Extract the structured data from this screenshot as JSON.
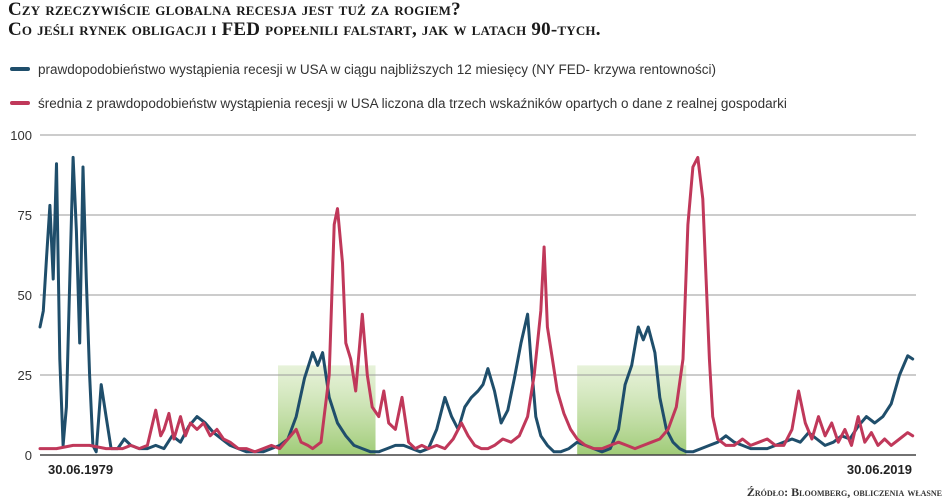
{
  "title": {
    "line1": "Czy rzeczywiście globalna recesja jest tuż za rogiem?",
    "line2": "Co jeśli rynek obligacji i FED popełnili falstart, jak w latach 90-tych."
  },
  "legend": [
    {
      "label": "prawdopodobieństwo wystąpienia recesji w USA w ciągu najbliższych 12 miesięcy (NY FED- krzywa rentowności)",
      "color": "#1f4e6b"
    },
    {
      "label": "średnia z prawdopodobieństw wystąpienia recesji w USA liczona dla trzech wskaźników opartych o dane z realnej gospodarki",
      "color": "#c0385a"
    }
  ],
  "source": "Źródło: Bloomberg, obliczenia własne",
  "chart_data": {
    "type": "line",
    "x_labels": [
      "30.06.1979",
      "30.06.2019"
    ],
    "ylim": [
      0,
      100
    ],
    "yticks": [
      0,
      25,
      50,
      75,
      100
    ],
    "grid": true,
    "highlights": [
      {
        "from": 1993.9,
        "to": 1999.8,
        "color": "#a8cf7c"
      },
      {
        "from": 2012.0,
        "to": 2018.6,
        "color": "#a8cf7c"
      }
    ],
    "series": [
      {
        "name": "prawdopodobieństwo wystąpienia recesji w USA w ciągu najbliższych 12 miesięcy (NY FED- krzywa rentowności)",
        "color": "#1f4e6b",
        "points": [
          [
            1979.5,
            40
          ],
          [
            1979.7,
            45
          ],
          [
            1979.9,
            62
          ],
          [
            1980.1,
            78
          ],
          [
            1980.3,
            55
          ],
          [
            1980.5,
            91
          ],
          [
            1980.7,
            30
          ],
          [
            1980.9,
            3
          ],
          [
            1981.1,
            15
          ],
          [
            1981.3,
            55
          ],
          [
            1981.5,
            93
          ],
          [
            1981.7,
            70
          ],
          [
            1981.9,
            35
          ],
          [
            1982.1,
            90
          ],
          [
            1982.3,
            55
          ],
          [
            1982.5,
            25
          ],
          [
            1982.7,
            3
          ],
          [
            1982.9,
            1
          ],
          [
            1983.2,
            22
          ],
          [
            1983.5,
            12
          ],
          [
            1983.8,
            2
          ],
          [
            1984.2,
            2
          ],
          [
            1984.6,
            5
          ],
          [
            1985.0,
            3
          ],
          [
            1985.5,
            2
          ],
          [
            1986.0,
            2
          ],
          [
            1986.5,
            3
          ],
          [
            1987.0,
            2
          ],
          [
            1987.5,
            6
          ],
          [
            1988.0,
            4
          ],
          [
            1988.5,
            9
          ],
          [
            1989.0,
            12
          ],
          [
            1989.5,
            10
          ],
          [
            1990.0,
            7
          ],
          [
            1990.5,
            5
          ],
          [
            1991.0,
            3
          ],
          [
            1991.5,
            2
          ],
          [
            1992.0,
            1
          ],
          [
            1992.5,
            1
          ],
          [
            1993.0,
            1
          ],
          [
            1993.5,
            2
          ],
          [
            1994.0,
            3
          ],
          [
            1994.5,
            5
          ],
          [
            1995.0,
            12
          ],
          [
            1995.5,
            24
          ],
          [
            1996.0,
            32
          ],
          [
            1996.3,
            28
          ],
          [
            1996.6,
            32
          ],
          [
            1997.0,
            18
          ],
          [
            1997.5,
            10
          ],
          [
            1998.0,
            6
          ],
          [
            1998.5,
            3
          ],
          [
            1999.0,
            2
          ],
          [
            1999.5,
            1
          ],
          [
            2000.0,
            1
          ],
          [
            2000.5,
            2
          ],
          [
            2001.0,
            3
          ],
          [
            2001.5,
            3
          ],
          [
            2002.0,
            2
          ],
          [
            2002.5,
            1
          ],
          [
            2003.0,
            2
          ],
          [
            2003.5,
            8
          ],
          [
            2004.0,
            18
          ],
          [
            2004.4,
            12
          ],
          [
            2004.8,
            8
          ],
          [
            2005.2,
            15
          ],
          [
            2005.6,
            18
          ],
          [
            2006.0,
            20
          ],
          [
            2006.3,
            22
          ],
          [
            2006.6,
            27
          ],
          [
            2007.0,
            20
          ],
          [
            2007.4,
            10
          ],
          [
            2007.8,
            14
          ],
          [
            2008.2,
            24
          ],
          [
            2008.6,
            35
          ],
          [
            2009.0,
            44
          ],
          [
            2009.2,
            30
          ],
          [
            2009.5,
            12
          ],
          [
            2009.8,
            6
          ],
          [
            2010.2,
            3
          ],
          [
            2010.6,
            1
          ],
          [
            2011.0,
            1
          ],
          [
            2011.5,
            2
          ],
          [
            2012.0,
            4
          ],
          [
            2012.5,
            3
          ],
          [
            2013.0,
            2
          ],
          [
            2013.5,
            1
          ],
          [
            2014.0,
            2
          ],
          [
            2014.5,
            8
          ],
          [
            2014.9,
            22
          ],
          [
            2015.3,
            28
          ],
          [
            2015.7,
            40
          ],
          [
            2016.0,
            36
          ],
          [
            2016.3,
            40
          ],
          [
            2016.7,
            32
          ],
          [
            2017.0,
            18
          ],
          [
            2017.4,
            8
          ],
          [
            2017.8,
            4
          ],
          [
            2018.2,
            2
          ],
          [
            2018.6,
            1
          ],
          [
            2019.0,
            1
          ],
          [
            2019.5,
            2
          ],
          [
            2020.0,
            3
          ],
          [
            2020.5,
            4
          ],
          [
            2021.0,
            6
          ],
          [
            2021.5,
            4
          ],
          [
            2022.0,
            3
          ],
          [
            2022.5,
            2
          ],
          [
            2023.0,
            2
          ],
          [
            2023.5,
            2
          ],
          [
            2024.0,
            3
          ],
          [
            2024.5,
            4
          ],
          [
            2025.0,
            5
          ],
          [
            2025.5,
            4
          ],
          [
            2026.0,
            7
          ],
          [
            2026.5,
            5
          ],
          [
            2027.0,
            3
          ],
          [
            2027.5,
            4
          ],
          [
            2028.0,
            6
          ],
          [
            2028.5,
            5
          ],
          [
            2029.0,
            9
          ],
          [
            2029.5,
            12
          ],
          [
            2030.0,
            10
          ],
          [
            2030.5,
            12
          ],
          [
            2031.0,
            16
          ],
          [
            2031.5,
            25
          ],
          [
            2032.0,
            31
          ],
          [
            2032.3,
            30
          ]
        ]
      },
      {
        "name": "średnia z prawdopodobieństw wystąpienia recesji w USA liczona dla trzech wskaźników opartych o dane z realnej gospodarki",
        "color": "#c0385a",
        "points": [
          [
            1979.5,
            2
          ],
          [
            1980.5,
            2
          ],
          [
            1981.5,
            3
          ],
          [
            1982.5,
            3
          ],
          [
            1983.5,
            2
          ],
          [
            1984.5,
            2
          ],
          [
            1985.0,
            3
          ],
          [
            1985.5,
            2
          ],
          [
            1986.0,
            3
          ],
          [
            1986.5,
            14
          ],
          [
            1986.8,
            6
          ],
          [
            1987.0,
            8
          ],
          [
            1987.3,
            13
          ],
          [
            1987.6,
            5
          ],
          [
            1988.0,
            12
          ],
          [
            1988.3,
            6
          ],
          [
            1988.6,
            10
          ],
          [
            1989.0,
            8
          ],
          [
            1989.4,
            10
          ],
          [
            1989.8,
            6
          ],
          [
            1990.2,
            8
          ],
          [
            1990.6,
            5
          ],
          [
            1991.0,
            4
          ],
          [
            1991.5,
            2
          ],
          [
            1992.0,
            2
          ],
          [
            1992.5,
            1
          ],
          [
            1993.0,
            2
          ],
          [
            1993.5,
            3
          ],
          [
            1994.0,
            2
          ],
          [
            1994.5,
            5
          ],
          [
            1995.0,
            8
          ],
          [
            1995.3,
            4
          ],
          [
            1995.7,
            3
          ],
          [
            1996.0,
            2
          ],
          [
            1996.5,
            4
          ],
          [
            1997.0,
            25
          ],
          [
            1997.3,
            72
          ],
          [
            1997.5,
            77
          ],
          [
            1997.8,
            60
          ],
          [
            1998.0,
            35
          ],
          [
            1998.3,
            30
          ],
          [
            1998.6,
            20
          ],
          [
            1999.0,
            44
          ],
          [
            1999.3,
            25
          ],
          [
            1999.6,
            15
          ],
          [
            2000.0,
            12
          ],
          [
            2000.3,
            20
          ],
          [
            2000.6,
            10
          ],
          [
            2001.0,
            8
          ],
          [
            2001.4,
            18
          ],
          [
            2001.8,
            4
          ],
          [
            2002.2,
            2
          ],
          [
            2002.6,
            3
          ],
          [
            2003.0,
            2
          ],
          [
            2003.5,
            3
          ],
          [
            2004.0,
            2
          ],
          [
            2004.5,
            5
          ],
          [
            2005.0,
            10
          ],
          [
            2005.4,
            6
          ],
          [
            2005.8,
            3
          ],
          [
            2006.2,
            2
          ],
          [
            2006.6,
            2
          ],
          [
            2007.0,
            3
          ],
          [
            2007.5,
            5
          ],
          [
            2008.0,
            4
          ],
          [
            2008.5,
            6
          ],
          [
            2009.0,
            12
          ],
          [
            2009.4,
            25
          ],
          [
            2009.8,
            45
          ],
          [
            2010.0,
            65
          ],
          [
            2010.2,
            40
          ],
          [
            2010.5,
            30
          ],
          [
            2010.8,
            20
          ],
          [
            2011.2,
            13
          ],
          [
            2011.6,
            8
          ],
          [
            2012.0,
            5
          ],
          [
            2012.5,
            3
          ],
          [
            2013.0,
            2
          ],
          [
            2013.5,
            2
          ],
          [
            2014.0,
            3
          ],
          [
            2014.5,
            4
          ],
          [
            2015.0,
            3
          ],
          [
            2015.5,
            2
          ],
          [
            2016.0,
            3
          ],
          [
            2016.5,
            4
          ],
          [
            2017.0,
            5
          ],
          [
            2017.5,
            8
          ],
          [
            2018.0,
            15
          ],
          [
            2018.4,
            30
          ],
          [
            2018.7,
            72
          ],
          [
            2019.0,
            90
          ],
          [
            2019.3,
            93
          ],
          [
            2019.6,
            80
          ],
          [
            2019.8,
            55
          ],
          [
            2020.0,
            30
          ],
          [
            2020.2,
            12
          ],
          [
            2020.5,
            5
          ],
          [
            2021.0,
            3
          ],
          [
            2021.5,
            3
          ],
          [
            2022.0,
            5
          ],
          [
            2022.5,
            3
          ],
          [
            2023.0,
            4
          ],
          [
            2023.5,
            5
          ],
          [
            2024.0,
            3
          ],
          [
            2024.5,
            3
          ],
          [
            2025.0,
            8
          ],
          [
            2025.4,
            20
          ],
          [
            2025.8,
            10
          ],
          [
            2026.2,
            5
          ],
          [
            2026.6,
            12
          ],
          [
            2027.0,
            6
          ],
          [
            2027.4,
            10
          ],
          [
            2027.8,
            4
          ],
          [
            2028.2,
            8
          ],
          [
            2028.6,
            3
          ],
          [
            2029.0,
            12
          ],
          [
            2029.4,
            4
          ],
          [
            2029.8,
            7
          ],
          [
            2030.2,
            3
          ],
          [
            2030.6,
            5
          ],
          [
            2031.0,
            3
          ],
          [
            2031.5,
            5
          ],
          [
            2032.0,
            7
          ],
          [
            2032.3,
            6
          ]
        ]
      }
    ]
  }
}
